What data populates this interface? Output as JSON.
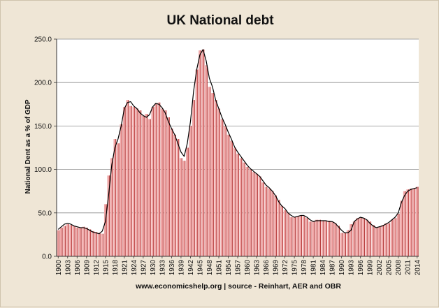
{
  "chart_data": {
    "type": "bar",
    "title": "UK National debt",
    "ylabel": "National Dent as a % of GDP",
    "source_note": "www.economicshelp.org | source - Reinhart, AER and OBR",
    "ylim": [
      0,
      250
    ],
    "yticks": [
      "0.0",
      "50.0",
      "100.0",
      "150.0",
      "200.0",
      "250.0"
    ],
    "xtick_labels": [
      "1900",
      "1903",
      "1906",
      "1909",
      "1912",
      "1915",
      "1918",
      "1921",
      "1924",
      "1927",
      "1930",
      "1933",
      "1936",
      "1939",
      "1942",
      "1945",
      "1948",
      "1951",
      "1954",
      "1957",
      "1960",
      "1963",
      "1966",
      "1969",
      "1972",
      "1975",
      "1978",
      "1981",
      "1984",
      "1987",
      "1990",
      "1993",
      "1996",
      "1999",
      "2002",
      "2005",
      "2008",
      "2011",
      "2014"
    ],
    "grid": true,
    "legend": "none",
    "colors": {
      "bar": "#f0a9a9",
      "bar_edge": "#b53a3a",
      "line": "#000000",
      "grid": "#8a8a8a",
      "plot_bg": "#ffffff"
    },
    "series": [
      {
        "type": "bar",
        "x": [
          1900,
          1901,
          1902,
          1903,
          1904,
          1905,
          1906,
          1907,
          1908,
          1909,
          1910,
          1911,
          1912,
          1913,
          1914,
          1915,
          1916,
          1917,
          1918,
          1919,
          1920,
          1921,
          1922,
          1923,
          1924,
          1925,
          1926,
          1927,
          1928,
          1929,
          1930,
          1931,
          1932,
          1933,
          1934,
          1935,
          1936,
          1937,
          1938,
          1939,
          1940,
          1941,
          1942,
          1943,
          1944,
          1945,
          1946,
          1947,
          1948,
          1949,
          1950,
          1951,
          1952,
          1953,
          1954,
          1955,
          1956,
          1957,
          1958,
          1959,
          1960,
          1961,
          1962,
          1963,
          1964,
          1965,
          1966,
          1967,
          1968,
          1969,
          1970,
          1971,
          1972,
          1973,
          1974,
          1975,
          1976,
          1977,
          1978,
          1979,
          1980,
          1981,
          1982,
          1983,
          1984,
          1985,
          1986,
          1987,
          1988,
          1989,
          1990,
          1991,
          1992,
          1993,
          1994,
          1995,
          1996,
          1997,
          1998,
          1999,
          2000,
          2001,
          2002,
          2003,
          2004,
          2005,
          2006,
          2007,
          2008,
          2009,
          2010,
          2011,
          2012,
          2013,
          2014
        ],
        "values": [
          30,
          33,
          35,
          37,
          36,
          35,
          33,
          33,
          34,
          33,
          31,
          29,
          28,
          27,
          26,
          60,
          93,
          113,
          135,
          130,
          152,
          172,
          180,
          173,
          172,
          170,
          168,
          162,
          164,
          158,
          172,
          176,
          177,
          170,
          168,
          160,
          147,
          140,
          135,
          113,
          110,
          125,
          150,
          180,
          215,
          237,
          238,
          220,
          195,
          188,
          180,
          170,
          158,
          150,
          140,
          133,
          125,
          118,
          113,
          108,
          103,
          100,
          97,
          95,
          92,
          85,
          80,
          78,
          75,
          70,
          65,
          58,
          53,
          50,
          45,
          45,
          46,
          47,
          46,
          44,
          40,
          40,
          42,
          42,
          41,
          41,
          41,
          40,
          38,
          35,
          27,
          27,
          30,
          37,
          40,
          44,
          45,
          44,
          42,
          40,
          36,
          33,
          34,
          36,
          38,
          38,
          42,
          44,
          49,
          64,
          75,
          77,
          78,
          78,
          80
        ]
      },
      {
        "type": "line",
        "x": [
          1900,
          1901,
          1902,
          1903,
          1904,
          1905,
          1906,
          1907,
          1908,
          1909,
          1910,
          1911,
          1912,
          1913,
          1914,
          1915,
          1916,
          1917,
          1918,
          1919,
          1920,
          1921,
          1922,
          1923,
          1924,
          1925,
          1926,
          1927,
          1928,
          1929,
          1930,
          1931,
          1932,
          1933,
          1934,
          1935,
          1936,
          1937,
          1938,
          1939,
          1940,
          1941,
          1942,
          1943,
          1944,
          1945,
          1946,
          1947,
          1948,
          1949,
          1950,
          1951,
          1952,
          1953,
          1954,
          1955,
          1956,
          1957,
          1958,
          1959,
          1960,
          1961,
          1962,
          1963,
          1964,
          1965,
          1966,
          1967,
          1968,
          1969,
          1970,
          1971,
          1972,
          1973,
          1974,
          1975,
          1976,
          1977,
          1978,
          1979,
          1980,
          1981,
          1982,
          1983,
          1984,
          1985,
          1986,
          1987,
          1988,
          1989,
          1990,
          1991,
          1992,
          1993,
          1994,
          1995,
          1996,
          1997,
          1998,
          1999,
          2000,
          2001,
          2002,
          2003,
          2004,
          2005,
          2006,
          2007,
          2008,
          2009,
          2010,
          2011,
          2012,
          2013,
          2014
        ],
        "values": [
          31,
          34,
          37,
          38,
          37,
          35,
          34,
          33,
          33,
          32,
          30,
          28,
          27,
          26,
          29,
          40,
          70,
          105,
          125,
          135,
          150,
          170,
          177,
          178,
          173,
          170,
          165,
          162,
          160,
          163,
          172,
          176,
          175,
          171,
          165,
          155,
          147,
          140,
          130,
          120,
          115,
          130,
          155,
          190,
          215,
          232,
          238,
          225,
          205,
          195,
          180,
          170,
          160,
          152,
          143,
          135,
          126,
          120,
          115,
          110,
          105,
          101,
          98,
          95,
          92,
          87,
          82,
          79,
          75,
          70,
          63,
          58,
          55,
          50,
          47,
          45,
          46,
          47,
          47,
          45,
          42,
          40,
          41,
          41,
          41,
          41,
          40,
          40,
          38,
          34,
          30,
          27,
          27,
          30,
          40,
          43,
          45,
          44,
          42,
          38,
          35,
          33,
          34,
          35,
          37,
          39,
          42,
          45,
          50,
          62,
          70,
          75,
          77,
          78,
          79
        ]
      }
    ]
  }
}
